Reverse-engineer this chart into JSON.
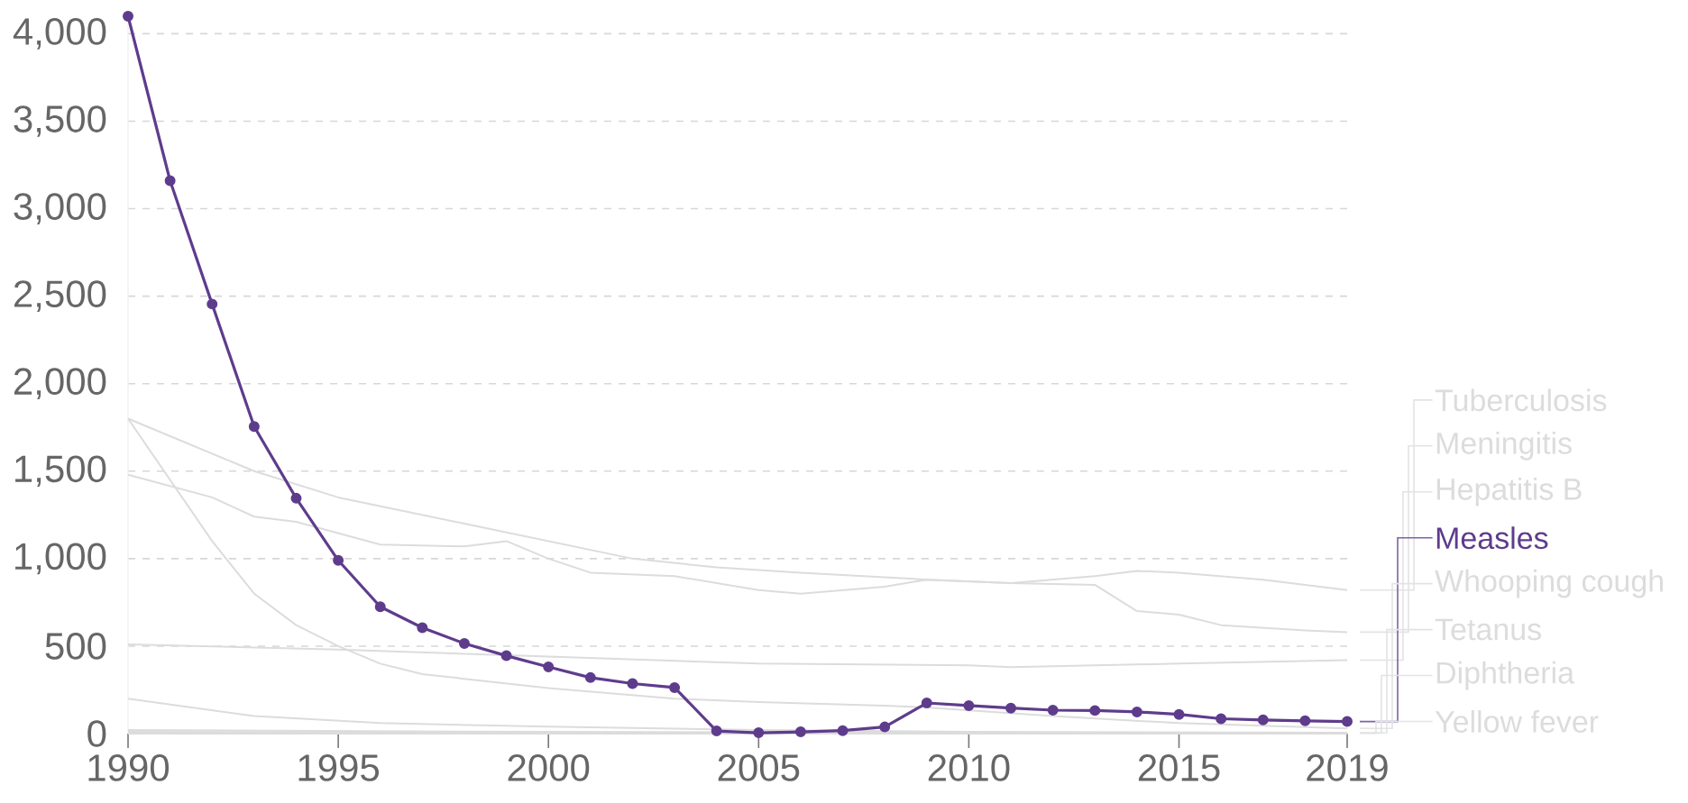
{
  "chart_data": {
    "type": "line",
    "x": [
      1990,
      1991,
      1992,
      1993,
      1994,
      1995,
      1996,
      1997,
      1998,
      1999,
      2000,
      2001,
      2002,
      2003,
      2004,
      2005,
      2006,
      2007,
      2008,
      2009,
      2010,
      2011,
      2012,
      2013,
      2014,
      2015,
      2016,
      2017,
      2018,
      2019
    ],
    "xlim": [
      1990,
      2019
    ],
    "xticks": [
      1990,
      1995,
      2000,
      2005,
      2010,
      2015,
      2019
    ],
    "ylim": [
      0,
      4100
    ],
    "yticks": [
      0,
      500,
      {
        "value": 1000,
        "label": "1,000"
      },
      {
        "value": 1500,
        "label": "1,500"
      },
      {
        "value": 2000,
        "label": "2,000"
      },
      {
        "value": 2500,
        "label": "2,500"
      },
      {
        "value": 3000,
        "label": "3,000"
      },
      {
        "value": 3500,
        "label": "3,500"
      },
      {
        "value": 4000,
        "label": "4,000"
      }
    ],
    "grid": "y",
    "legend": "right",
    "series": [
      {
        "name": "Tuberculosis",
        "color": "#dcdcdc",
        "marker": "none",
        "x": [
          1990,
          1993,
          1995,
          1998,
          2000,
          2002,
          2004,
          2006,
          2009,
          2011,
          2013,
          2014,
          2015,
          2017,
          2019
        ],
        "values": [
          1800,
          1500,
          1350,
          1200,
          1100,
          1000,
          950,
          920,
          880,
          860,
          900,
          930,
          920,
          880,
          820
        ]
      },
      {
        "name": "Meningitis",
        "color": "#dcdcdc",
        "marker": "none",
        "x": [
          1990,
          1992,
          1993,
          1994,
          1996,
          1998,
          1999,
          2000,
          2001,
          2003,
          2005,
          2006,
          2008,
          2009,
          2011,
          2013,
          2014,
          2015,
          2016,
          2018,
          2019
        ],
        "values": [
          1480,
          1350,
          1240,
          1210,
          1080,
          1070,
          1100,
          1000,
          920,
          900,
          820,
          800,
          840,
          880,
          860,
          850,
          700,
          680,
          620,
          590,
          580
        ]
      },
      {
        "name": "Hepatitis B",
        "color": "#dcdcdc",
        "marker": "none",
        "x": [
          1990,
          1995,
          2000,
          2005,
          2010,
          2011,
          2015,
          2019
        ],
        "values": [
          510,
          480,
          440,
          400,
          390,
          380,
          400,
          420
        ]
      },
      {
        "name": "Whooping cough",
        "color": "#dcdcdc",
        "marker": "none",
        "x": [
          1990,
          1991,
          1992,
          1993,
          1994,
          1995,
          1996,
          1997,
          2000,
          2003,
          2005,
          2008,
          2009,
          2012,
          2015,
          2019
        ],
        "values": [
          1800,
          1450,
          1100,
          800,
          620,
          500,
          400,
          340,
          260,
          200,
          180,
          160,
          150,
          100,
          60,
          30
        ]
      },
      {
        "name": "Tetanus",
        "color": "#dcdcdc",
        "marker": "none",
        "x": [
          1990,
          1993,
          1996,
          2000,
          2005,
          2010,
          2019
        ],
        "values": [
          200,
          100,
          60,
          40,
          20,
          10,
          5
        ]
      },
      {
        "name": "Diphtheria",
        "color": "#dcdcdc",
        "marker": "none",
        "x": [
          1990,
          2000,
          2010,
          2019
        ],
        "values": [
          20,
          10,
          5,
          3
        ]
      },
      {
        "name": "Yellow fever",
        "color": "#dcdcdc",
        "marker": "none",
        "x": [
          1990,
          2019
        ],
        "values": [
          10,
          1
        ]
      },
      {
        "name": "Measles",
        "color": "#5e3c8c",
        "marker": "circle",
        "values": [
          4100,
          3160,
          2455,
          1755,
          1345,
          990,
          725,
          605,
          515,
          445,
          381,
          320,
          286,
          263,
          15,
          5,
          10,
          17,
          38,
          175,
          160,
          146,
          134,
          132,
          124,
          110,
          85,
          78,
          73,
          69
        ]
      }
    ]
  }
}
